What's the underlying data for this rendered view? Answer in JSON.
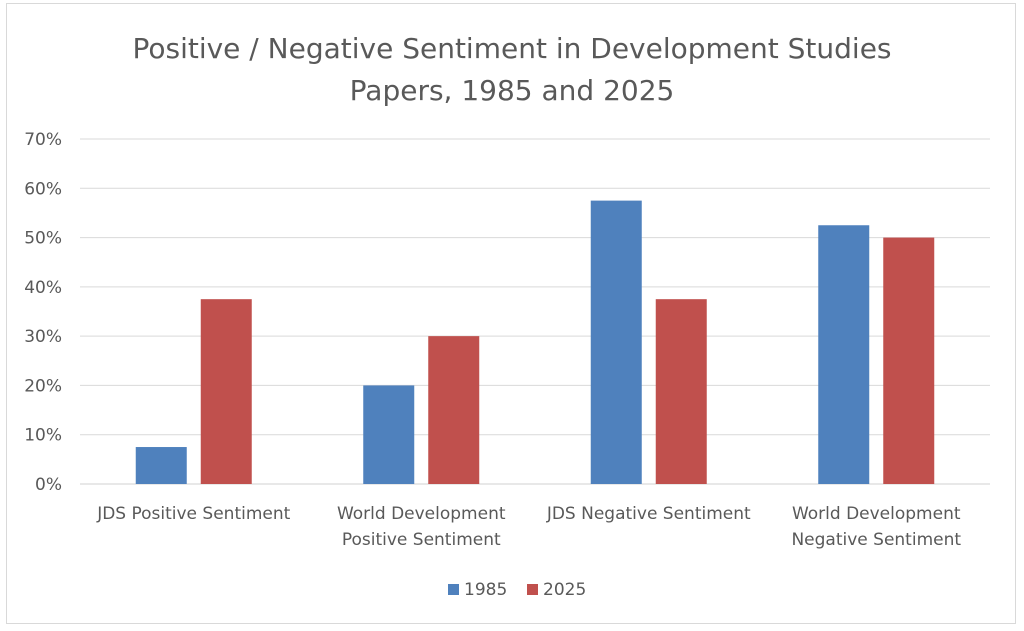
{
  "chart_data": {
    "type": "bar",
    "title_lines": [
      "Positive / Negative Sentiment in Development Studies",
      "Papers, 1985 and 2025"
    ],
    "categories": [
      [
        "JDS Positive Sentiment"
      ],
      [
        "World Development",
        "Positive Sentiment"
      ],
      [
        "JDS Negative Sentiment"
      ],
      [
        "World Development",
        "Negative Sentiment"
      ]
    ],
    "series": [
      {
        "name": "1985",
        "color": "#4f81bd",
        "values": [
          0.075,
          0.2,
          0.575,
          0.525
        ]
      },
      {
        "name": "2025",
        "color": "#c0504d",
        "values": [
          0.375,
          0.3,
          0.375,
          0.5
        ]
      }
    ],
    "ylim": [
      0,
      0.7
    ],
    "yticks": [
      0,
      0.1,
      0.2,
      0.3,
      0.4,
      0.5,
      0.6,
      0.7
    ],
    "ytick_labels": [
      "0%",
      "10%",
      "20%",
      "30%",
      "40%",
      "50%",
      "60%",
      "70%"
    ],
    "xlabel": "",
    "ylabel": "",
    "grid": true,
    "legend_position": "bottom"
  }
}
